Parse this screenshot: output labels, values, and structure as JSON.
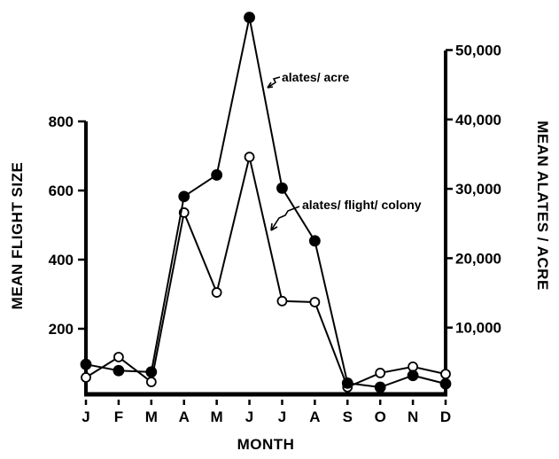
{
  "chart_data": {
    "type": "line",
    "title": "",
    "xlabel": "MONTH",
    "ylabel": "MEAN FLIGHT SIZE",
    "y2label": "MEAN ALATES / ACRE",
    "categories": [
      "J",
      "F",
      "M",
      "A",
      "M",
      "J",
      "J",
      "A",
      "S",
      "O",
      "N",
      "D"
    ],
    "ylim": [
      0,
      800
    ],
    "y2lim": [
      0,
      50000
    ],
    "yticks": [
      200,
      400,
      600,
      800
    ],
    "ytick_labels": [
      "200",
      "400",
      "600",
      "800"
    ],
    "y2ticks": [
      10000,
      20000,
      30000,
      40000,
      50000
    ],
    "y2tick_labels": [
      "10,000",
      "20,000",
      "30,000",
      "40,000",
      "50,000"
    ],
    "grid": false,
    "legend": "none (inline annotations)",
    "series": [
      {
        "name": "alates/ acre",
        "axis": "right",
        "marker": "filled-circle",
        "values": [
          4700,
          3800,
          3600,
          28900,
          32000,
          54700,
          30100,
          22500,
          2000,
          1400,
          3100,
          1900
        ]
      },
      {
        "name": "alates/ flight/ colony",
        "axis": "left",
        "marker": "open-circle",
        "values": [
          59,
          118,
          46,
          536,
          305,
          697,
          280,
          277,
          31,
          72,
          90,
          69
        ]
      }
    ],
    "annotations": [
      {
        "text": "alates/ acre",
        "points_to": "alates/ acre series (J→J segment)"
      },
      {
        "text": "alates/ flight/ colony",
        "points_to": "alates/ flight/ colony series (J→J segment)"
      }
    ]
  },
  "labels": {
    "x_title": "MONTH",
    "y_left_title": "MEAN FLIGHT SIZE",
    "y_right_title": "MEAN ALATES / ACRE",
    "annot_acre": "alates/ acre",
    "annot_flight": "alates/ flight/ colony"
  },
  "colors": {
    "ink": "#000000",
    "background": "#ffffff"
  }
}
